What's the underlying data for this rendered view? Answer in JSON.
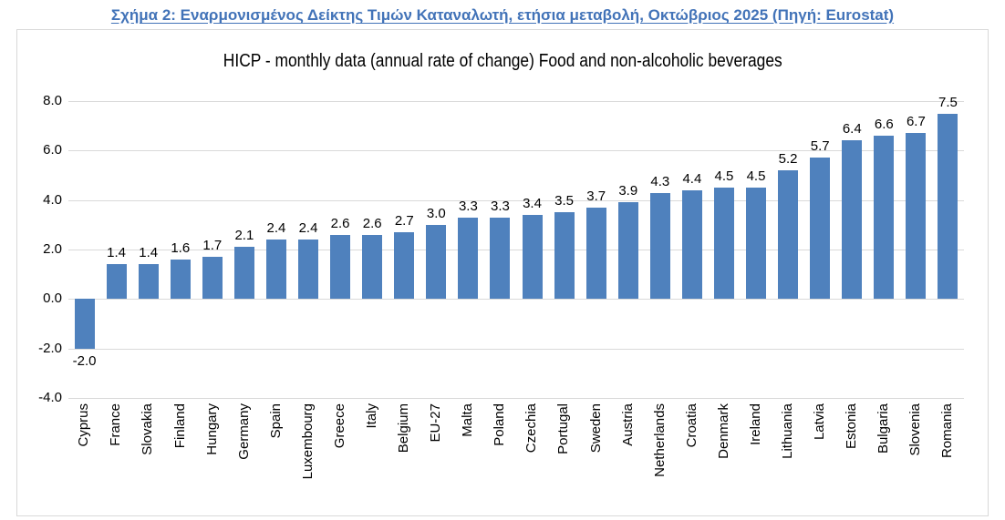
{
  "page": {
    "heading": "Σχήμα 2: Εναρμονισμένος Δείκτης Τιμών Καταναλωτή, ετήσια μεταβολή, Οκτώβριος 2025 (Πηγή: Eurostat)"
  },
  "colors": {
    "heading_text": "#4273B8",
    "bar": "#4F81BD",
    "gridline": "#D9D9D9",
    "box_border": "#D9D9D9",
    "label_text": "#000000"
  },
  "chart_data": {
    "type": "bar",
    "title": "HICP - monthly data (annual rate of change) Food and non-alcoholic beverages",
    "categories": [
      "Cyprus",
      "France",
      "Slovakia",
      "Finland",
      "Hungary",
      "Germany",
      "Spain",
      "Luxembourg",
      "Greece",
      "Italy",
      "Belgium",
      "EU-27",
      "Malta",
      "Poland",
      "Czechia",
      "Portugal",
      "Sweden",
      "Austria",
      "Netherlands",
      "Croatia",
      "Denmark",
      "Ireland",
      "Lithuania",
      "Latvia",
      "Estonia",
      "Bulgaria",
      "Slovenia",
      "Romania"
    ],
    "values": [
      -2.0,
      1.4,
      1.4,
      1.6,
      1.7,
      2.1,
      2.4,
      2.4,
      2.6,
      2.6,
      2.7,
      3.0,
      3.3,
      3.3,
      3.4,
      3.5,
      3.7,
      3.9,
      4.3,
      4.4,
      4.5,
      4.5,
      5.2,
      5.7,
      6.4,
      6.6,
      6.7,
      7.5
    ],
    "xlabel": "",
    "ylabel": "",
    "ylim": [
      -4.0,
      8.0
    ],
    "yticks": [
      8.0,
      6.0,
      4.0,
      2.0,
      0.0,
      -2.0,
      -4.0
    ],
    "grid": true,
    "legend_position": "none",
    "data_labels": "outside_end",
    "x_label_rotation_degrees": -90
  }
}
